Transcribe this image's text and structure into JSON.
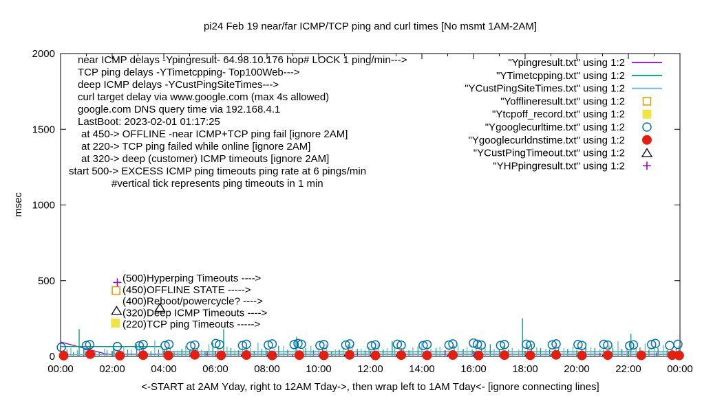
{
  "title": "pi24 Feb 19  near/far ICMP/TCP ping and curl times [No msmt 1AM-2AM]",
  "axes": {
    "y_label": "msec",
    "x_label": "<-START at 2AM Yday, right to 12AM Tday->, then wrap left to 1AM Tday<- [ignore connecting lines]",
    "y_ticks": [
      "0",
      "500",
      "1000",
      "1500",
      "2000"
    ],
    "y_tick_values": [
      0,
      500,
      1000,
      1500,
      2000
    ],
    "x_ticks": [
      "00:00",
      "02:00",
      "04:00",
      "06:00",
      "08:00",
      "10:00",
      "12:00",
      "14:00",
      "16:00",
      "18:00",
      "20:00",
      "22:00",
      "00:00"
    ],
    "x_range_hours": [
      0,
      24
    ],
    "y_range_msec": [
      0,
      2000
    ]
  },
  "annotations": {
    "lines": [
      {
        "pre": "near ICMP delays -Ypingresult- 64.98.10.176 hop# LOCK 1 ping/min--->",
        "bold": "",
        "post": ""
      },
      {
        "pre": "TCP ping delays -YTimetcpping- Top100Web--->",
        "bold": "",
        "post": ""
      },
      {
        "pre": "deep ICMP delays -YCustPingSiteTimes--->",
        "bold": "",
        "post": ""
      },
      {
        "pre": "curl target delay via www.google.com (max 4s allowed)",
        "bold": "",
        "post": ""
      },
      {
        "pre": "google.com DNS query time via 192.168.4.1",
        "bold": "",
        "post": ""
      },
      {
        "pre": "LastBoot: 2023-02-01 01:17:25",
        "bold": "",
        "post": ""
      },
      {
        "pre": "at 450->  ",
        "bold": "OFFLINE",
        "post": "  -near ICMP+TCP ping fail [ignore 2AM]"
      },
      {
        "pre": "at 220-> TCP ping failed while online [ignore 2AM]",
        "bold": "",
        "post": ""
      },
      {
        "pre": "at 320-> deep (customer) ICMP timeouts [ignore 2AM]",
        "bold": "",
        "post": ""
      },
      {
        "pre": "start 500->  ",
        "bold": "EXCESS ICMP ping timeouts",
        "post": "  ping rate at 6 pings/min"
      },
      {
        "pre": "#vertical tick represents ping timeouts in 1 min",
        "bold": "",
        "post": ""
      }
    ]
  },
  "mid_labels": [
    "(500)Hyperping Timeouts ---->",
    "(450)OFFLINE STATE ----->",
    "(400)Reboot/powercycle? ---->",
    "(320)Deep ICMP Timeouts ---->",
    "(220)TCP ping Timeouts ----->"
  ],
  "legend": [
    {
      "label": "\"Ypingresult.txt\" using 1:2",
      "style": "line",
      "color": "#9400d3"
    },
    {
      "label": "\"YTimetcpping.txt\" using 1:2",
      "style": "line",
      "color": "#009e73"
    },
    {
      "label": "\"YCustPingSiteTimes.txt\" using 1:2",
      "style": "line",
      "color": "#56b4e9"
    },
    {
      "label": "\"Yofflineresult.txt\" using 1:2",
      "style": "open-square",
      "color": "#e69f00"
    },
    {
      "label": "\"Ytcpoff_record.txt\" using 1:2",
      "style": "filled-square",
      "color": "#f0e442"
    },
    {
      "label": "\"Ygooglecurltime.txt\" using 1:2",
      "style": "open-circle",
      "color": "#0072b2"
    },
    {
      "label": "\"Ygooglecurldnstime.txt\" using 1:2",
      "style": "filled-circle",
      "color": "#e51e10"
    },
    {
      "label": "\"YCustPingTimeout.txt\" using 1:2",
      "style": "open-triangle",
      "color": "#000000"
    },
    {
      "label": "\"YHPpingresult.txt\" using 1:2",
      "style": "plus",
      "color": "#9400d3"
    }
  ],
  "chart_data": {
    "type": "line",
    "note": "gnuplot multi-series: x = hours 00:00-24:00, y = msec; impulse ticks are 1-min ping timeouts",
    "x_range": [
      0,
      24
    ],
    "y_range": [
      0,
      2000
    ],
    "series": [
      {
        "name": "Ypingresult.txt",
        "style": "line",
        "color": "#9400d3",
        "line_points": [
          [
            0,
            95
          ],
          [
            1.8,
            14
          ],
          [
            24,
            14
          ]
        ]
      },
      {
        "name": "YTimetcpping.txt",
        "style": "line+ticks",
        "color": "#009e73",
        "line_points": [
          [
            0,
            65
          ],
          [
            3.9,
            65
          ],
          [
            4.05,
            30
          ],
          [
            24,
            30
          ]
        ],
        "ticks": [
          [
            0.25,
            45
          ],
          [
            0.5,
            30
          ],
          [
            0.72,
            180
          ],
          [
            0.9,
            55
          ],
          [
            1.2,
            35
          ],
          [
            1.5,
            25
          ],
          [
            1.8,
            40
          ],
          [
            2.05,
            60
          ],
          [
            2.3,
            35
          ],
          [
            2.6,
            45
          ],
          [
            2.95,
            80
          ],
          [
            3.2,
            50
          ],
          [
            3.5,
            35
          ],
          [
            3.8,
            45
          ],
          [
            4.1,
            60
          ],
          [
            4.4,
            35
          ],
          [
            4.7,
            50
          ],
          [
            5.0,
            40
          ],
          [
            5.3,
            55
          ],
          [
            5.6,
            35
          ],
          [
            5.9,
            90
          ],
          [
            6.32,
            180
          ],
          [
            6.6,
            55
          ],
          [
            6.9,
            40
          ],
          [
            7.2,
            60
          ],
          [
            7.5,
            35
          ],
          [
            7.8,
            50
          ],
          [
            8.1,
            40
          ],
          [
            8.45,
            70
          ],
          [
            8.8,
            45
          ],
          [
            9.15,
            130
          ],
          [
            9.5,
            55
          ],
          [
            9.8,
            40
          ],
          [
            10.15,
            60
          ],
          [
            10.5,
            35
          ],
          [
            10.8,
            45
          ],
          [
            11.15,
            80
          ],
          [
            11.5,
            50
          ],
          [
            11.8,
            40
          ],
          [
            12.15,
            60
          ],
          [
            12.5,
            45
          ],
          [
            12.85,
            100
          ],
          [
            13.2,
            55
          ],
          [
            13.5,
            40
          ],
          [
            13.85,
            65
          ],
          [
            14.2,
            45
          ],
          [
            14.55,
            55
          ],
          [
            14.9,
            40
          ],
          [
            15.25,
            70
          ],
          [
            15.6,
            50
          ],
          [
            15.95,
            45
          ],
          [
            16.3,
            60
          ],
          [
            16.65,
            80
          ],
          [
            17.0,
            50
          ],
          [
            17.35,
            45
          ],
          [
            17.9,
            252
          ],
          [
            18.25,
            80
          ],
          [
            18.6,
            55
          ],
          [
            18.95,
            45
          ],
          [
            19.3,
            65
          ],
          [
            19.65,
            50
          ],
          [
            20.0,
            40
          ],
          [
            20.35,
            90
          ],
          [
            20.7,
            55
          ],
          [
            21.05,
            45
          ],
          [
            21.4,
            60
          ],
          [
            21.75,
            50
          ],
          [
            22.1,
            150
          ],
          [
            22.45,
            60
          ],
          [
            22.8,
            45
          ],
          [
            23.15,
            55
          ],
          [
            23.5,
            40
          ],
          [
            23.85,
            60
          ]
        ]
      },
      {
        "name": "YCustPingSiteTimes.txt",
        "style": "line+ticks",
        "color": "#56b4e9",
        "line_points": [
          [
            0,
            12
          ],
          [
            24,
            12
          ]
        ],
        "ticks": [
          [
            0.15,
            30
          ],
          [
            0.4,
            55
          ],
          [
            0.65,
            40
          ],
          [
            0.95,
            60
          ],
          [
            1.35,
            35
          ],
          [
            1.7,
            50
          ],
          [
            2.1,
            40
          ],
          [
            2.45,
            65
          ],
          [
            2.75,
            45
          ],
          [
            3.05,
            70
          ],
          [
            3.65,
            105
          ],
          [
            3.95,
            50
          ],
          [
            4.25,
            60
          ],
          [
            4.55,
            40
          ],
          [
            4.85,
            70
          ],
          [
            5.15,
            55
          ],
          [
            5.45,
            45
          ],
          [
            5.75,
            80
          ],
          [
            6.1,
            50
          ],
          [
            6.45,
            65
          ],
          [
            6.75,
            45
          ],
          [
            7.05,
            75
          ],
          [
            7.35,
            55
          ],
          [
            7.65,
            90
          ],
          [
            7.95,
            60
          ],
          [
            8.3,
            50
          ],
          [
            8.65,
            70
          ],
          [
            9.1,
            110
          ],
          [
            9.4,
            50
          ],
          [
            9.7,
            70
          ],
          [
            10.0,
            55
          ],
          [
            10.3,
            80
          ],
          [
            10.65,
            45
          ],
          [
            10.95,
            60
          ],
          [
            11.3,
            75
          ],
          [
            11.65,
            50
          ],
          [
            11.95,
            65
          ],
          [
            12.3,
            85
          ],
          [
            12.65,
            55
          ],
          [
            12.95,
            70
          ],
          [
            13.3,
            45
          ],
          [
            13.65,
            60
          ],
          [
            14.0,
            95
          ],
          [
            14.35,
            50
          ],
          [
            14.7,
            65
          ],
          [
            15.05,
            55
          ],
          [
            15.4,
            75
          ],
          [
            15.75,
            60
          ],
          [
            16.1,
            85
          ],
          [
            16.45,
            65
          ],
          [
            16.8,
            50
          ],
          [
            17.15,
            70
          ],
          [
            17.5,
            55
          ],
          [
            17.75,
            45
          ],
          [
            18.1,
            80
          ],
          [
            18.45,
            60
          ],
          [
            18.8,
            50
          ],
          [
            19.15,
            70
          ],
          [
            19.5,
            55
          ],
          [
            19.85,
            65
          ],
          [
            20.2,
            85
          ],
          [
            20.55,
            60
          ],
          [
            20.9,
            50
          ],
          [
            21.25,
            70
          ],
          [
            21.6,
            100
          ],
          [
            21.95,
            55
          ],
          [
            22.3,
            65
          ],
          [
            22.65,
            85
          ],
          [
            23.0,
            60
          ],
          [
            23.35,
            75
          ],
          [
            23.7,
            55
          ],
          [
            23.95,
            70
          ]
        ]
      },
      {
        "name": "Yofflineresult.txt",
        "style": "open-square",
        "color": "#e69f00",
        "points": [
          [
            2.15,
            435
          ]
        ]
      },
      {
        "name": "Ytcpoff_record.txt",
        "style": "filled-square",
        "color": "#f0e442",
        "points": [
          [
            2.13,
            220
          ]
        ]
      },
      {
        "name": "Ygooglecurltime.txt",
        "style": "open-circle",
        "color": "#0072b2",
        "points": [
          [
            0.03,
            60
          ],
          [
            1.0,
            72
          ],
          [
            1.13,
            78
          ],
          [
            2.2,
            65
          ],
          [
            3.05,
            70
          ],
          [
            3.2,
            78
          ],
          [
            4.05,
            72
          ],
          [
            4.2,
            80
          ],
          [
            5.05,
            68
          ],
          [
            5.2,
            75
          ],
          [
            6.02,
            85
          ],
          [
            6.16,
            78
          ],
          [
            7.05,
            72
          ],
          [
            7.2,
            80
          ],
          [
            8.05,
            75
          ],
          [
            8.2,
            82
          ],
          [
            9.05,
            78
          ],
          [
            9.2,
            85
          ],
          [
            9.33,
            80
          ],
          [
            10.05,
            72
          ],
          [
            10.2,
            78
          ],
          [
            11.05,
            75
          ],
          [
            11.2,
            82
          ],
          [
            12.05,
            70
          ],
          [
            12.2,
            76
          ],
          [
            13.05,
            80
          ],
          [
            13.2,
            74
          ],
          [
            14.05,
            72
          ],
          [
            14.2,
            78
          ],
          [
            15.05,
            75
          ],
          [
            15.2,
            82
          ],
          [
            16.0,
            88
          ],
          [
            16.15,
            80
          ],
          [
            16.3,
            75
          ],
          [
            17.05,
            72
          ],
          [
            17.2,
            78
          ],
          [
            18.05,
            80
          ],
          [
            18.2,
            74
          ],
          [
            19.05,
            76
          ],
          [
            19.2,
            82
          ],
          [
            20.05,
            78
          ],
          [
            20.2,
            72
          ],
          [
            21.05,
            80
          ],
          [
            21.2,
            75
          ],
          [
            22.05,
            70
          ],
          [
            22.2,
            76
          ],
          [
            22.9,
            78
          ],
          [
            23.05,
            85
          ],
          [
            23.6,
            72
          ],
          [
            23.92,
            80
          ]
        ]
      },
      {
        "name": "Ygooglecurldnstime.txt",
        "style": "filled-circle",
        "color": "#e51e10",
        "points": [
          [
            0.12,
            5
          ],
          [
            1.15,
            15
          ],
          [
            2.3,
            5
          ],
          [
            3.2,
            8
          ],
          [
            4.18,
            6
          ],
          [
            5.2,
            10
          ],
          [
            6.22,
            7
          ],
          [
            7.2,
            9
          ],
          [
            8.2,
            6
          ],
          [
            9.25,
            8
          ],
          [
            10.2,
            7
          ],
          [
            11.2,
            10
          ],
          [
            12.2,
            6
          ],
          [
            13.2,
            8
          ],
          [
            14.2,
            7
          ],
          [
            15.2,
            9
          ],
          [
            16.2,
            6
          ],
          [
            17.2,
            8
          ],
          [
            18.2,
            7
          ],
          [
            19.2,
            10
          ],
          [
            20.2,
            6
          ],
          [
            21.2,
            8
          ],
          [
            22.5,
            7
          ],
          [
            23.7,
            8
          ],
          [
            23.97,
            6
          ]
        ]
      },
      {
        "name": "YCustPingTimeout.txt",
        "style": "open-triangle",
        "color": "#000000",
        "points": [
          [
            2.17,
            302
          ],
          [
            3.85,
            322
          ]
        ]
      },
      {
        "name": "YHPpingresult.txt",
        "style": "plus",
        "color": "#9400d3",
        "points": [
          [
            2.2,
            488
          ]
        ],
        "ticks": [
          [
            5.68,
            35
          ],
          [
            8.3,
            20
          ],
          [
            11.5,
            25
          ],
          [
            14.9,
            40
          ],
          [
            16.05,
            30
          ],
          [
            20.9,
            22
          ],
          [
            23.1,
            25
          ]
        ]
      }
    ]
  }
}
